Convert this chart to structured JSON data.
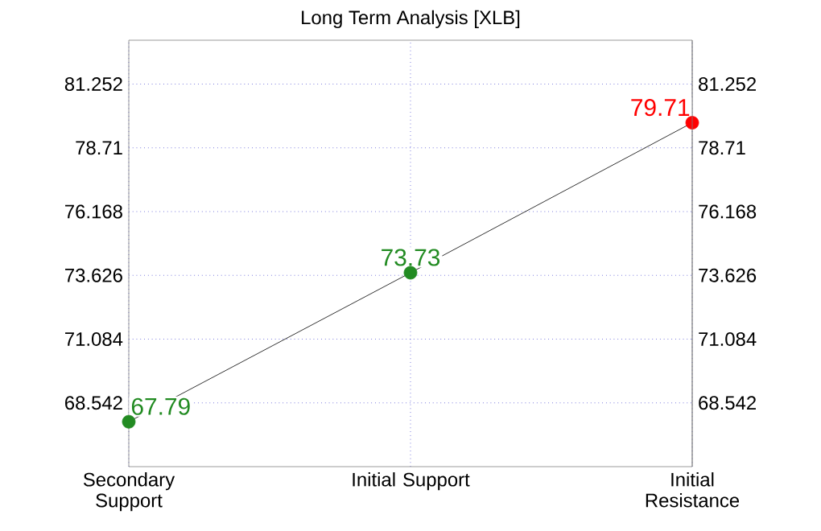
{
  "chart_data": {
    "type": "line",
    "title": "Long Term Analysis [XLB]",
    "categories": [
      "Secondary Support",
      "Initial Support",
      "Initial Resistance"
    ],
    "values": [
      67.79,
      73.73,
      79.71
    ],
    "colors": [
      "#228b22",
      "#228b22",
      "#ff0000"
    ],
    "color": "#000000",
    "data_labels": true,
    "marker": "circle",
    "line_style": "solid",
    "grid": true,
    "ylim": [
      66.0,
      83.0
    ],
    "yticks": [
      68.542,
      71.084,
      73.626,
      76.168,
      78.71,
      81.252
    ],
    "y2lim": [
      66.0,
      83.0
    ],
    "y2ticks": [
      68.542,
      71.084,
      73.626,
      76.168,
      78.71,
      81.252
    ]
  }
}
